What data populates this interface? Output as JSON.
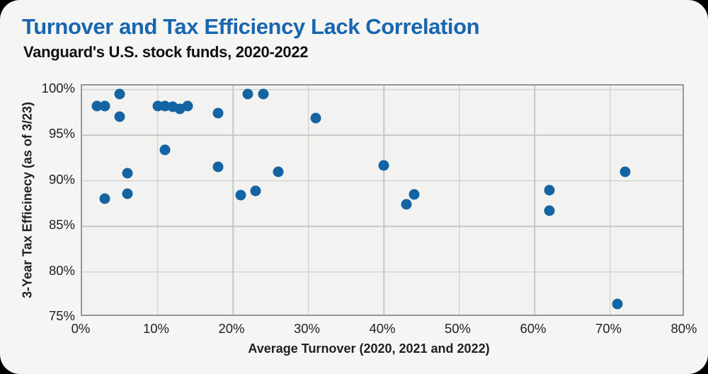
{
  "chart_data": {
    "type": "scatter",
    "title": "Turnover and Tax Efficiency Lack Correlation",
    "subtitle": "Vanguard's U.S. stock funds, 2020-2022",
    "xlabel": "Average Turnover (2020, 2021 and 2022)",
    "ylabel": "3-Year Tax Efficinecy (as of 3/23)",
    "xlim": [
      0,
      80
    ],
    "ylim": [
      75,
      100
    ],
    "grid": true,
    "legend": false,
    "x_tick_values": [
      0,
      10,
      20,
      30,
      40,
      50,
      60,
      70,
      80
    ],
    "x_tick_labels": [
      "0%",
      "10%",
      "20%",
      "30%",
      "40%",
      "50%",
      "60%",
      "70%",
      "80%"
    ],
    "y_tick_values": [
      75,
      80,
      85,
      90,
      95,
      100
    ],
    "y_tick_labels": [
      "75%",
      "80%",
      "85%",
      "90%",
      "95%",
      "100%"
    ],
    "x_gridline_values": [
      10,
      20,
      30,
      40,
      50,
      60,
      70
    ],
    "y_gridline_values": [
      80,
      85,
      90,
      95,
      100
    ],
    "points": [
      [
        2,
        98.2
      ],
      [
        3,
        98.2
      ],
      [
        5,
        99.5
      ],
      [
        5,
        97.0
      ],
      [
        10,
        98.2
      ],
      [
        11,
        98.2
      ],
      [
        12,
        98.1
      ],
      [
        13,
        97.9
      ],
      [
        14,
        98.2
      ],
      [
        18,
        97.4
      ],
      [
        22,
        99.5
      ],
      [
        24,
        99.5
      ],
      [
        31,
        96.9
      ],
      [
        11,
        93.4
      ],
      [
        18,
        91.5
      ],
      [
        26,
        91.0
      ],
      [
        40,
        91.7
      ],
      [
        21,
        88.4
      ],
      [
        23,
        88.9
      ],
      [
        6,
        90.8
      ],
      [
        6,
        88.6
      ],
      [
        3,
        88.0
      ],
      [
        43,
        87.4
      ],
      [
        44,
        88.5
      ],
      [
        62,
        89.0
      ],
      [
        62,
        86.7
      ],
      [
        72,
        91.0
      ],
      [
        71,
        76.5
      ]
    ],
    "colors": {
      "dot": "#1464a4",
      "title": "#1866af",
      "subtitle": "#111111",
      "card_background": "#f5f5f3",
      "plot_background": "#f2f2f0",
      "gridline": "#c6c6c5",
      "plot_border": "#979797",
      "page_background": "#000000",
      "tick_text": "#1f1f1f"
    }
  }
}
